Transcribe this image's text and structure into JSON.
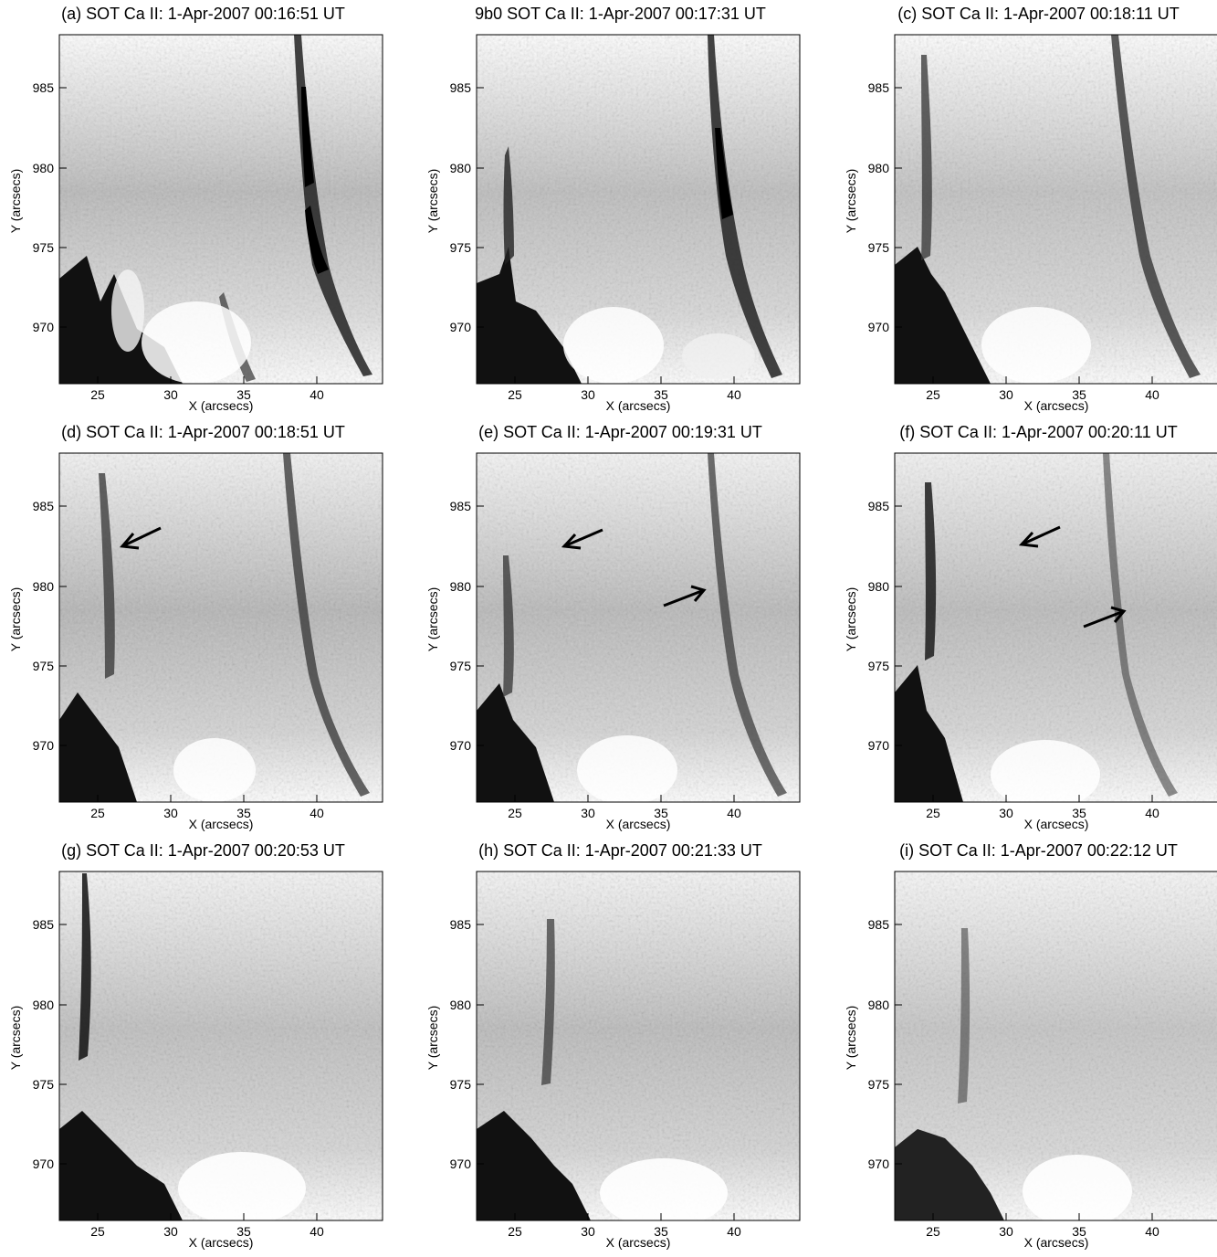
{
  "figure": {
    "x_axis_label": "X (arcsecs)",
    "y_axis_label": "Y (arcsecs)",
    "x_ticks": [
      "25",
      "30",
      "35",
      "40"
    ],
    "y_ticks": [
      "985",
      "980",
      "975",
      "970"
    ],
    "panels": [
      {
        "id": "a",
        "title": "(a) SOT Ca II:  1-Apr-2007 00:16:51 UT",
        "arrows": []
      },
      {
        "id": "b",
        "title": "9b0 SOT Ca II:  1-Apr-2007 00:17:31 UT",
        "arrows": []
      },
      {
        "id": "c",
        "title": "(c) SOT Ca II:  1-Apr-2007 00:18:11 UT",
        "arrows": []
      },
      {
        "id": "d",
        "title": "(d) SOT Ca II:  1-Apr-2007 00:18:51 UT",
        "arrows": [
          "up-left"
        ]
      },
      {
        "id": "e",
        "title": "(e) SOT Ca II:  1-Apr-2007 00:19:31 UT",
        "arrows": [
          "up-left",
          "up-right"
        ]
      },
      {
        "id": "f",
        "title": "(f) SOT Ca II:  1-Apr-2007 00:20:11 UT",
        "arrows": [
          "up-left",
          "up-right"
        ]
      },
      {
        "id": "g",
        "title": "(g) SOT Ca II:  1-Apr-2007 00:20:53 UT",
        "arrows": []
      },
      {
        "id": "h",
        "title": "(h) SOT Ca II:  1-Apr-2007 00:21:33 UT",
        "arrows": []
      },
      {
        "id": "i",
        "title": "(i) SOT Ca II:  1-Apr-2007 00:22:12 UT",
        "arrows": []
      }
    ]
  }
}
